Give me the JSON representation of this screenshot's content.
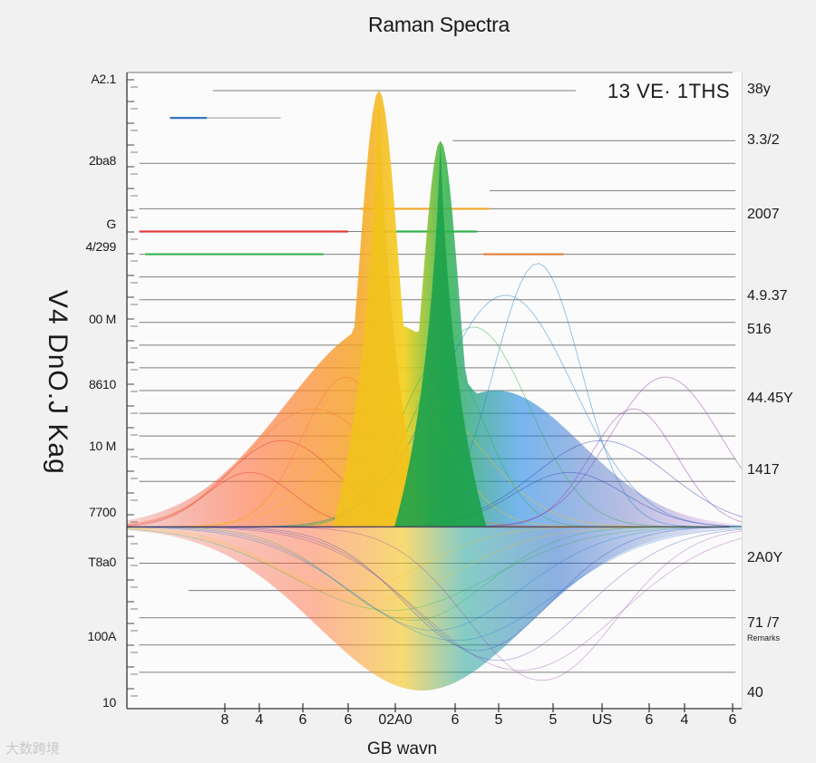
{
  "chart_data": {
    "type": "area",
    "title": "Raman Spectra",
    "xlabel": "GB wavn",
    "ylabel": "V4 DnO.J Kag",
    "legend_text": "13 VE· 1THS",
    "y_ticks_left": [
      "A2.1",
      "2ba8",
      "G",
      "4/299",
      "00 M",
      "8610",
      "10 M",
      "7700",
      "T8a0",
      "100A",
      "10"
    ],
    "y_ticks_right": [
      "38y",
      "3.3/2",
      "2007",
      "4.9.37",
      "516",
      "44.45Y",
      "1417",
      "2A0Y",
      "71 /7",
      "Remarks",
      "40"
    ],
    "x_ticks": [
      "8",
      "4",
      "6",
      "6",
      "02A0",
      "6",
      "5",
      "5",
      "US",
      "6",
      "4",
      "6"
    ],
    "xlim": [
      0,
      100
    ],
    "ylim": [
      -40,
      100
    ],
    "peaks": [
      {
        "name": "yellow-peak",
        "x": 41,
        "y": 96,
        "color": "#f1c21b"
      },
      {
        "name": "green-peak",
        "x": 51,
        "y": 85,
        "color": "#1aa04b"
      }
    ],
    "spectrum_colors": [
      "#e53935",
      "#ff7f27",
      "#f5c518",
      "#2eb34a",
      "#1e7fd0",
      "#3b48b8",
      "#8e3fa8"
    ],
    "reference_lines": [
      {
        "y": 96,
        "x0": 14,
        "x1": 73,
        "color": "#555555"
      },
      {
        "y": 90,
        "x0": 7,
        "x1": 25,
        "color": "#777777"
      },
      {
        "y": 90,
        "x0": 7,
        "x1": 13,
        "color": "#2f6fc0"
      },
      {
        "y": 85,
        "x0": 53,
        "x1": 99,
        "color": "#555555"
      },
      {
        "y": 80,
        "x0": 2,
        "x1": 99,
        "color": "#555555"
      },
      {
        "y": 74,
        "x0": 59,
        "x1": 99,
        "color": "#555555"
      },
      {
        "y": 70,
        "x0": 2,
        "x1": 99,
        "color": "#555555"
      },
      {
        "y": 70,
        "x0": 38,
        "x1": 59,
        "color": "#f5a623"
      },
      {
        "y": 65,
        "x0": 2,
        "x1": 99,
        "color": "#555555"
      },
      {
        "y": 65,
        "x0": 2,
        "x1": 36,
        "color": "#e53935"
      },
      {
        "y": 65,
        "x0": 41,
        "x1": 57,
        "color": "#2eb34a"
      },
      {
        "y": 60,
        "x0": 2,
        "x1": 99,
        "color": "#555555"
      },
      {
        "y": 60,
        "x0": 3,
        "x1": 32,
        "color": "#2eb34a"
      },
      {
        "y": 60,
        "x0": 58,
        "x1": 71,
        "color": "#e57c2e"
      },
      {
        "y": 55,
        "x0": 2,
        "x1": 99,
        "color": "#555555"
      },
      {
        "y": 50,
        "x0": 2,
        "x1": 99,
        "color": "#555555"
      },
      {
        "y": 45,
        "x0": 2,
        "x1": 99,
        "color": "#555555"
      },
      {
        "y": 40,
        "x0": 2,
        "x1": 99,
        "color": "#555555"
      },
      {
        "y": 35,
        "x0": 2,
        "x1": 99,
        "color": "#555555"
      },
      {
        "y": 30,
        "x0": 2,
        "x1": 99,
        "color": "#555555"
      },
      {
        "y": 25,
        "x0": 2,
        "x1": 99,
        "color": "#555555"
      },
      {
        "y": 20,
        "x0": 2,
        "x1": 99,
        "color": "#555555"
      },
      {
        "y": 15,
        "x0": 2,
        "x1": 99,
        "color": "#555555"
      },
      {
        "y": 10,
        "x0": 2,
        "x1": 99,
        "color": "#555555"
      },
      {
        "y": -8,
        "x0": 2,
        "x1": 99,
        "color": "#555555"
      },
      {
        "y": -14,
        "x0": 10,
        "x1": 99,
        "color": "#555555"
      },
      {
        "y": -20,
        "x0": 2,
        "x1": 99,
        "color": "#555555"
      },
      {
        "y": -26,
        "x0": 2,
        "x1": 99,
        "color": "#555555"
      },
      {
        "y": -32,
        "x0": 2,
        "x1": 99,
        "color": "#555555"
      }
    ]
  },
  "watermark": "大数跨境"
}
